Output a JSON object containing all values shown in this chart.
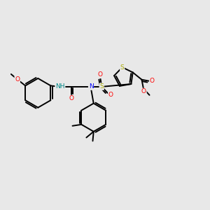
{
  "background_color": "#e8e8e8",
  "bond_color": "#000000",
  "atom_colors": {
    "N": "#0000ff",
    "O": "#ff0000",
    "S": "#aaaa00",
    "NH": "#008888",
    "C": "#000000"
  },
  "fig_size": [
    3.0,
    3.0
  ],
  "dpi": 100,
  "xlim": [
    0,
    12
  ],
  "ylim": [
    0,
    12
  ]
}
